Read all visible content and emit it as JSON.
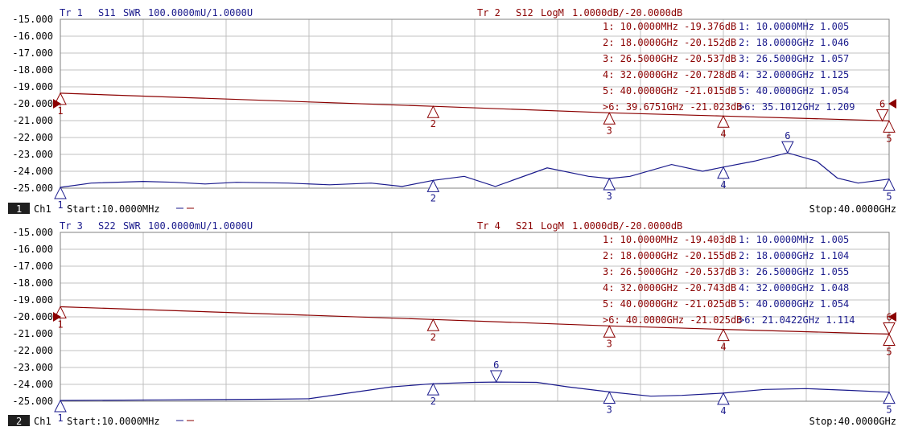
{
  "colors": {
    "background": "#ffffff",
    "grid": "#c0c0c0",
    "axis_text": "#000000",
    "trace_swr": "#1a1a8c",
    "trace_logm": "#8b0000",
    "status_badge_bg": "#202020",
    "status_badge_fg": "#ffffff"
  },
  "y_ticks": [
    "-15.000",
    "-16.000",
    "-17.000",
    "-18.000",
    "-19.000",
    "-20.000",
    "-21.000",
    "-22.000",
    "-23.000",
    "-24.000",
    "-25.000"
  ],
  "panels": [
    {
      "swr_trace": {
        "label": "Tr 1",
        "param": "S11",
        "format": "SWR",
        "scale": "100.0000mU/1.0000U"
      },
      "logm_trace": {
        "label": "Tr 2",
        "param": "S12",
        "format": "LogM",
        "scale": "1.0000dB/-20.0000dB"
      },
      "markers_logm": [
        {
          "num": "1:",
          "freq": "10.0000MHz",
          "value": "-19.376dB"
        },
        {
          "num": "2:",
          "freq": "18.0000GHz",
          "value": "-20.152dB"
        },
        {
          "num": "3:",
          "freq": "26.5000GHz",
          "value": "-20.537dB"
        },
        {
          "num": "4:",
          "freq": "32.0000GHz",
          "value": "-20.728dB"
        },
        {
          "num": "5:",
          "freq": "40.0000GHz",
          "value": "-21.015dB"
        },
        {
          "num": ">6:",
          "freq": "39.6751GHz",
          "value": "-21.023dB"
        }
      ],
      "markers_swr": [
        {
          "num": "1:",
          "freq": "10.0000MHz",
          "value": "1.005"
        },
        {
          "num": "2:",
          "freq": "18.0000GHz",
          "value": "1.046"
        },
        {
          "num": "3:",
          "freq": "26.5000GHz",
          "value": "1.057"
        },
        {
          "num": "4:",
          "freq": "32.0000GHz",
          "value": "1.125"
        },
        {
          "num": "5:",
          "freq": "40.0000GHz",
          "value": "1.054"
        },
        {
          "num": ">6:",
          "freq": "35.1012GHz",
          "value": "1.209"
        }
      ],
      "channel_num": "1",
      "channel": "Ch1",
      "start": "Start:10.0000MHz",
      "stop": "Stop:40.0000GHz"
    },
    {
      "swr_trace": {
        "label": "Tr 3",
        "param": "S22",
        "format": "SWR",
        "scale": "100.0000mU/1.0000U"
      },
      "logm_trace": {
        "label": "Tr 4",
        "param": "S21",
        "format": "LogM",
        "scale": "1.0000dB/-20.0000dB"
      },
      "markers_logm": [
        {
          "num": "1:",
          "freq": "10.0000MHz",
          "value": "-19.403dB"
        },
        {
          "num": "2:",
          "freq": "18.0000GHz",
          "value": "-20.155dB"
        },
        {
          "num": "3:",
          "freq": "26.5000GHz",
          "value": "-20.537dB"
        },
        {
          "num": "4:",
          "freq": "32.0000GHz",
          "value": "-20.743dB"
        },
        {
          "num": "5:",
          "freq": "40.0000GHz",
          "value": "-21.025dB"
        },
        {
          "num": ">6:",
          "freq": "40.0000GHz",
          "value": "-21.025dB"
        }
      ],
      "markers_swr": [
        {
          "num": "1:",
          "freq": "10.0000MHz",
          "value": "1.005"
        },
        {
          "num": "2:",
          "freq": "18.0000GHz",
          "value": "1.104"
        },
        {
          "num": "3:",
          "freq": "26.5000GHz",
          "value": "1.055"
        },
        {
          "num": "4:",
          "freq": "32.0000GHz",
          "value": "1.048"
        },
        {
          "num": "5:",
          "freq": "40.0000GHz",
          "value": "1.054"
        },
        {
          "num": ">6:",
          "freq": "21.0422GHz",
          "value": "1.114"
        }
      ],
      "channel_num": "2",
      "channel": "Ch1",
      "start": "Start:10.0000MHz",
      "stop": "Stop:40.0000GHz"
    }
  ],
  "chart_data": [
    {
      "type": "line",
      "x_range_ghz": [
        0.01,
        40
      ],
      "y_ticks_left": [
        -15,
        -16,
        -17,
        -18,
        -19,
        -20,
        -21,
        -22,
        -23,
        -24,
        -25
      ],
      "series": [
        {
          "name": "S12",
          "format": "LogM",
          "reference_db": -20,
          "scale_db_per_div": 1,
          "points": [
            [
              0.01,
              -19.376
            ],
            [
              18,
              -20.152
            ],
            [
              26.5,
              -20.537
            ],
            [
              32,
              -20.728
            ],
            [
              40,
              -21.015
            ]
          ],
          "markers": [
            {
              "id": "1",
              "x": 0.01,
              "y": -19.376
            },
            {
              "id": "2",
              "x": 18,
              "y": -20.152
            },
            {
              "id": "3",
              "x": 26.5,
              "y": -20.537
            },
            {
              "id": "4",
              "x": 32,
              "y": -20.728
            },
            {
              "id": "5",
              "x": 40,
              "y": -21.015
            },
            {
              "id": "6",
              "x": 39.6751,
              "y": -21.023,
              "down": true
            }
          ]
        },
        {
          "name": "S11",
          "format": "SWR",
          "scale_per_div": 0.1,
          "points": [
            [
              0.01,
              1.005
            ],
            [
              1.5,
              1.03
            ],
            [
              4,
              1.04
            ],
            [
              5.5,
              1.035
            ],
            [
              7,
              1.025
            ],
            [
              8.5,
              1.035
            ],
            [
              11,
              1.03
            ],
            [
              13,
              1.02
            ],
            [
              15,
              1.03
            ],
            [
              16.5,
              1.01
            ],
            [
              18,
              1.046
            ],
            [
              19.5,
              1.07
            ],
            [
              21,
              1.01
            ],
            [
              23.5,
              1.12
            ],
            [
              25.5,
              1.07
            ],
            [
              26.5,
              1.057
            ],
            [
              27.5,
              1.07
            ],
            [
              29.5,
              1.14
            ],
            [
              31,
              1.1
            ],
            [
              32,
              1.125
            ],
            [
              33.5,
              1.16
            ],
            [
              35.1,
              1.209
            ],
            [
              36.5,
              1.16
            ],
            [
              37.5,
              1.06
            ],
            [
              38.5,
              1.03
            ],
            [
              40,
              1.054
            ]
          ],
          "markers": [
            {
              "id": "1",
              "x": 0.01,
              "y": 1.005
            },
            {
              "id": "2",
              "x": 18,
              "y": 1.046
            },
            {
              "id": "3",
              "x": 26.5,
              "y": 1.057
            },
            {
              "id": "4",
              "x": 32,
              "y": 1.125
            },
            {
              "id": "5",
              "x": 40,
              "y": 1.054
            },
            {
              "id": "6",
              "x": 35.1012,
              "y": 1.209,
              "down": true
            }
          ]
        }
      ]
    },
    {
      "type": "line",
      "x_range_ghz": [
        0.01,
        40
      ],
      "y_ticks_left": [
        -15,
        -16,
        -17,
        -18,
        -19,
        -20,
        -21,
        -22,
        -23,
        -24,
        -25
      ],
      "series": [
        {
          "name": "S21",
          "format": "LogM",
          "reference_db": -20,
          "scale_db_per_div": 1,
          "points": [
            [
              0.01,
              -19.403
            ],
            [
              18,
              -20.155
            ],
            [
              26.5,
              -20.537
            ],
            [
              32,
              -20.743
            ],
            [
              40,
              -21.025
            ]
          ],
          "markers": [
            {
              "id": "1",
              "x": 0.01,
              "y": -19.403
            },
            {
              "id": "2",
              "x": 18,
              "y": -20.155
            },
            {
              "id": "3",
              "x": 26.5,
              "y": -20.537
            },
            {
              "id": "4",
              "x": 32,
              "y": -20.743
            },
            {
              "id": "5",
              "x": 40,
              "y": -21.025
            },
            {
              "id": "6",
              "x": 40,
              "y": -21.025,
              "down": true
            }
          ]
        },
        {
          "name": "S22",
          "format": "SWR",
          "scale_per_div": 0.1,
          "points": [
            [
              0.01,
              1.005
            ],
            [
              5,
              1.008
            ],
            [
              10,
              1.012
            ],
            [
              12,
              1.015
            ],
            [
              14,
              1.05
            ],
            [
              16,
              1.085
            ],
            [
              18,
              1.104
            ],
            [
              20,
              1.112
            ],
            [
              21.04,
              1.114
            ],
            [
              23,
              1.112
            ],
            [
              24.5,
              1.085
            ],
            [
              26.5,
              1.055
            ],
            [
              28.5,
              1.03
            ],
            [
              30,
              1.035
            ],
            [
              32,
              1.048
            ],
            [
              34,
              1.07
            ],
            [
              36,
              1.075
            ],
            [
              38,
              1.065
            ],
            [
              40,
              1.054
            ]
          ],
          "markers": [
            {
              "id": "1",
              "x": 0.01,
              "y": 1.005
            },
            {
              "id": "2",
              "x": 18,
              "y": 1.104
            },
            {
              "id": "3",
              "x": 26.5,
              "y": 1.055
            },
            {
              "id": "4",
              "x": 32,
              "y": 1.048
            },
            {
              "id": "5",
              "x": 40,
              "y": 1.054
            },
            {
              "id": "6",
              "x": 21.0422,
              "y": 1.114,
              "down": true
            }
          ]
        }
      ]
    }
  ]
}
